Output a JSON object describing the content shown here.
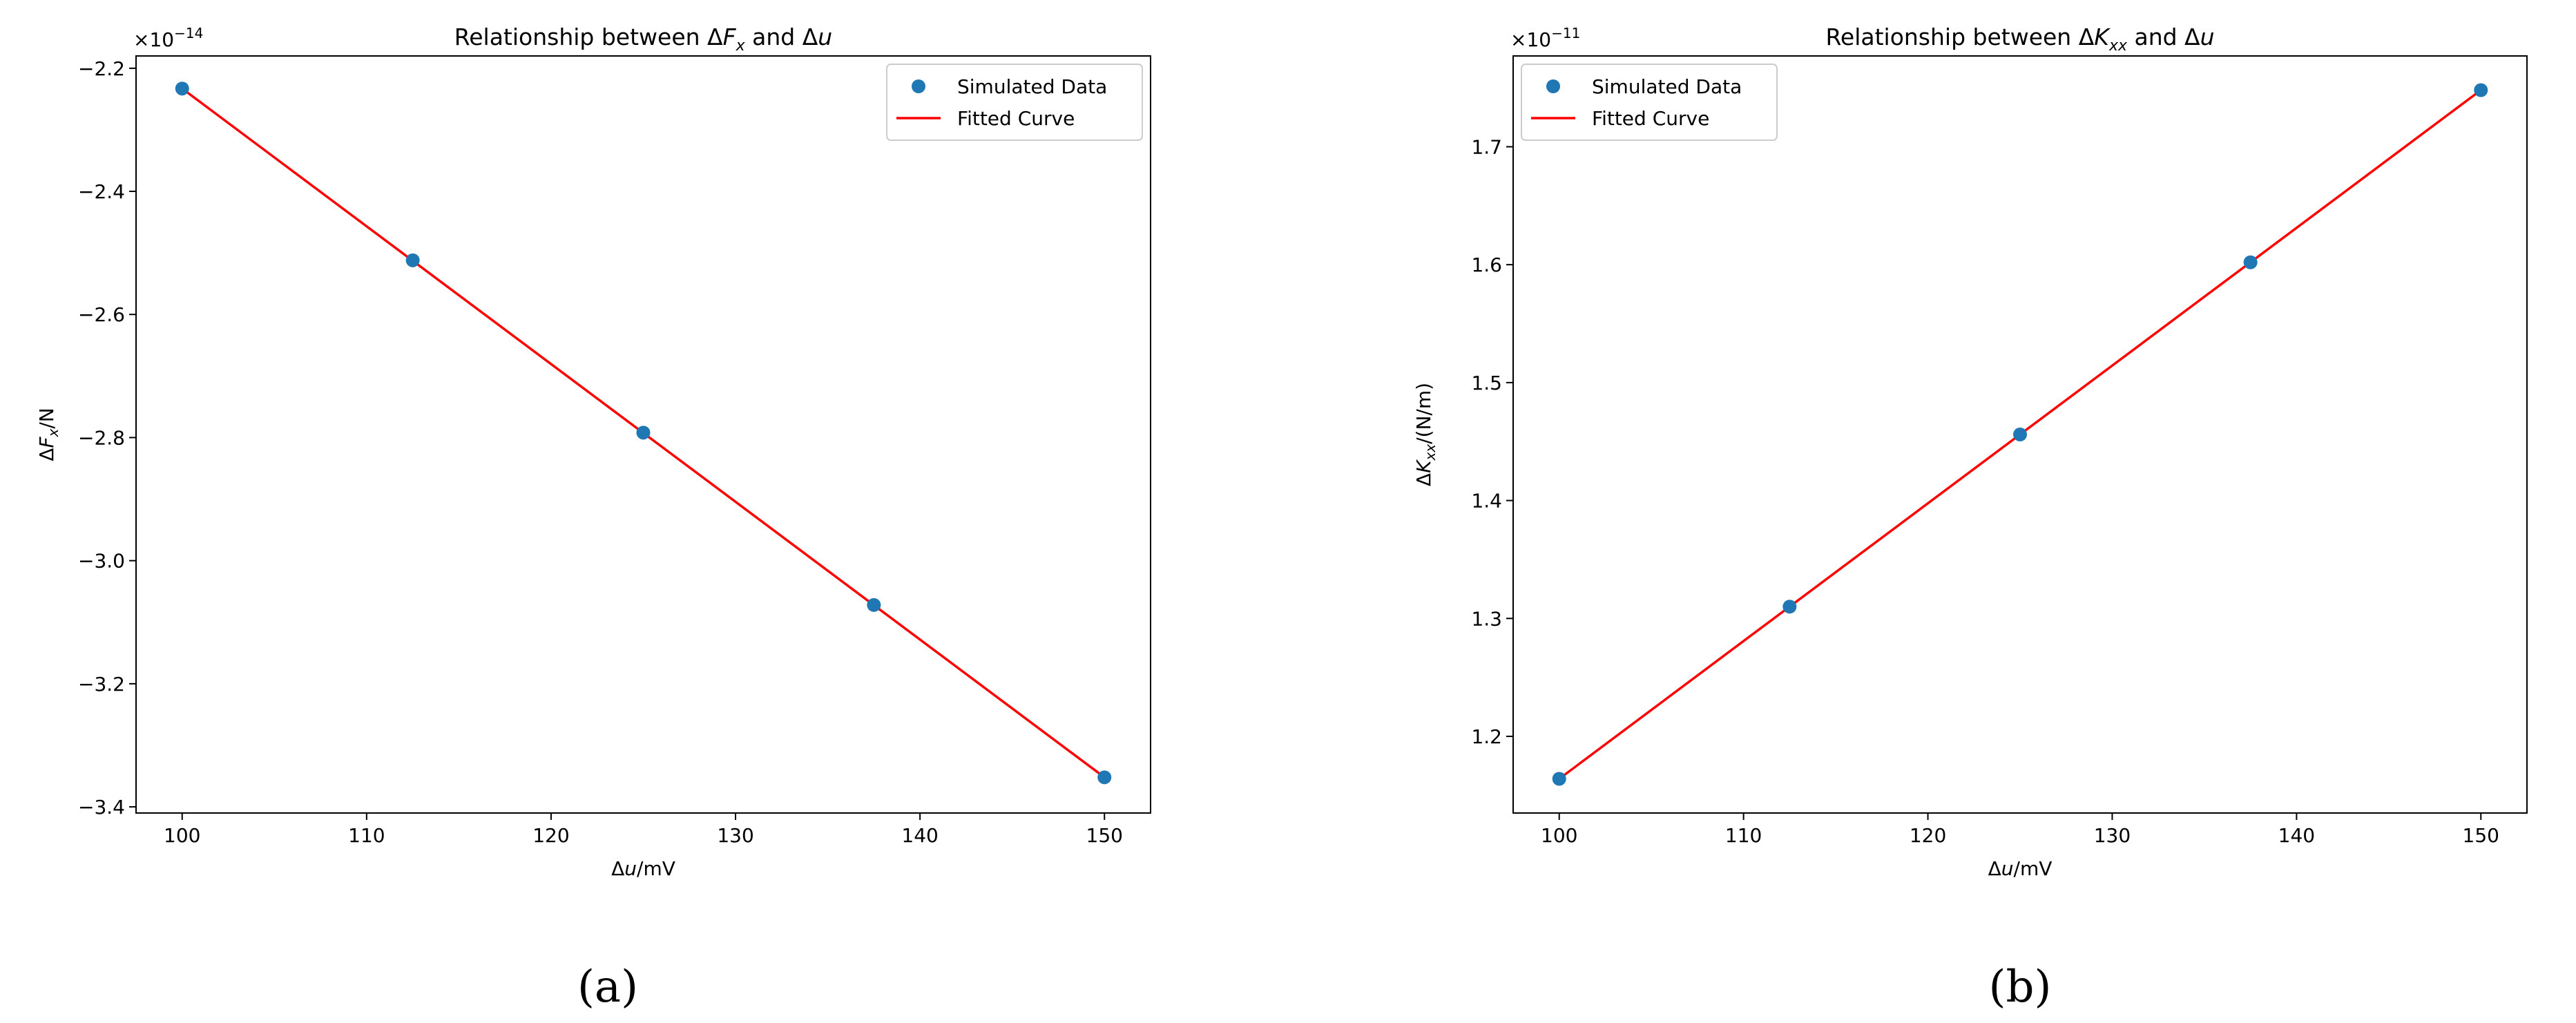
{
  "figure": {
    "panels": [
      {
        "caption": "(a)"
      },
      {
        "caption": "(b)"
      }
    ]
  },
  "chart_data": [
    {
      "type": "scatter",
      "title": "Relationship between ΔFx and Δu",
      "title_parts": {
        "prefix": "Relationship between Δ",
        "var": "F",
        "sub": "x",
        "mid": " and Δ",
        "var2": "u"
      },
      "xlabel": "Δu/mV",
      "xlabel_parts": {
        "pre": "Δ",
        "var": "u",
        "post": "/mV"
      },
      "ylabel": "ΔFx/N",
      "ylabel_parts": {
        "pre": "Δ",
        "var": "F",
        "sub": "x",
        "post": "/N"
      },
      "offset_text": "×10−14",
      "offset_parts": {
        "base": "×10",
        "exp": "−14"
      },
      "xlim": [
        97.5,
        152.5
      ],
      "ylim": [
        -3.41,
        -2.18
      ],
      "xticks": [
        100,
        110,
        120,
        130,
        140,
        150
      ],
      "xtick_labels": [
        "100",
        "110",
        "120",
        "130",
        "140",
        "150"
      ],
      "yticks": [
        -2.2,
        -2.4,
        -2.6,
        -2.8,
        -3.0,
        -3.2,
        -3.4
      ],
      "ytick_labels": [
        "−2.2",
        "−2.4",
        "−2.6",
        "−2.8",
        "−3.0",
        "−3.2",
        "−3.4"
      ],
      "legend_position": "upper right",
      "series": [
        {
          "name": "Simulated Data",
          "kind": "points",
          "color": "#1f77b4",
          "x": [
            100,
            112.5,
            125,
            137.5,
            150
          ],
          "y": [
            -2.233,
            -2.512,
            -2.792,
            -3.072,
            -3.352
          ]
        },
        {
          "name": "Fitted Curve",
          "kind": "line",
          "color": "#ff0000",
          "x": [
            100,
            150
          ],
          "y": [
            -2.233,
            -3.352
          ]
        }
      ]
    },
    {
      "type": "scatter",
      "title": "Relationship between ΔKxx and Δu",
      "title_parts": {
        "prefix": "Relationship between Δ",
        "var": "K",
        "sub": "xx",
        "mid": " and Δ",
        "var2": "u"
      },
      "xlabel": "Δu/mV",
      "xlabel_parts": {
        "pre": "Δ",
        "var": "u",
        "post": "/mV"
      },
      "ylabel": "ΔKxx/(N/m)",
      "ylabel_parts": {
        "pre": "Δ",
        "var": "K",
        "sub": "xx",
        "post": "/(N/m)"
      },
      "offset_text": "×10−11",
      "offset_parts": {
        "base": "×10",
        "exp": "−11"
      },
      "xlim": [
        97.5,
        152.5
      ],
      "ylim": [
        1.135,
        1.777
      ],
      "xticks": [
        100,
        110,
        120,
        130,
        140,
        150
      ],
      "xtick_labels": [
        "100",
        "110",
        "120",
        "130",
        "140",
        "150"
      ],
      "yticks": [
        1.2,
        1.3,
        1.4,
        1.5,
        1.6,
        1.7
      ],
      "ytick_labels": [
        "1.2",
        "1.3",
        "1.4",
        "1.5",
        "1.6",
        "1.7"
      ],
      "legend_position": "upper left",
      "series": [
        {
          "name": "Simulated Data",
          "kind": "points",
          "color": "#1f77b4",
          "x": [
            100,
            112.5,
            125,
            137.5,
            150
          ],
          "y": [
            1.164,
            1.31,
            1.456,
            1.602,
            1.748
          ]
        },
        {
          "name": "Fitted Curve",
          "kind": "line",
          "color": "#ff0000",
          "x": [
            100,
            150
          ],
          "y": [
            1.164,
            1.748
          ]
        }
      ]
    }
  ]
}
